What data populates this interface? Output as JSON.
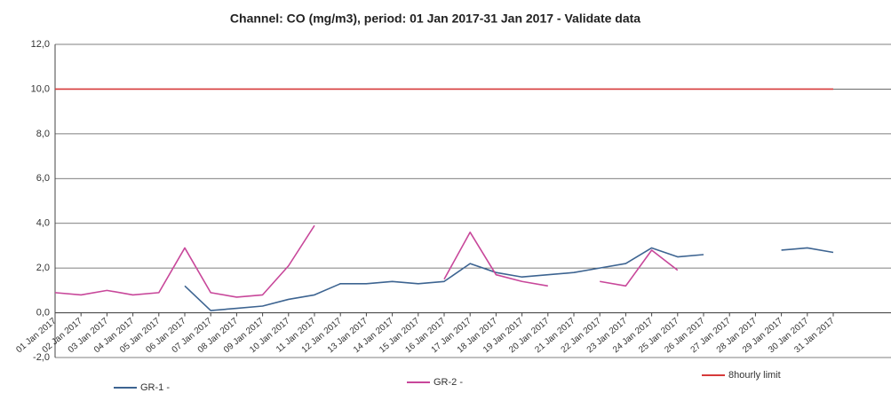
{
  "chart_data": {
    "type": "line",
    "title": "Channel: CO (mg/m3), period: 01 Jan 2017-31 Jan 2017 - Validate data",
    "categories": [
      "01 Jan 2017",
      "02 Jan 2017",
      "03 Jan 2017",
      "04 Jan 2017",
      "05 Jan 2017",
      "06 Jan 2017",
      "07 Jan 2017",
      "08 Jan 2017",
      "09 Jan 2017",
      "10 Jan 2017",
      "11 Jan 2017",
      "12 Jan 2017",
      "13 Jan 2017",
      "14 Jan 2017",
      "15 Jan 2017",
      "16 Jan 2017",
      "17 Jan 2017",
      "18 Jan 2017",
      "19 Jan 2017",
      "20 Jan 2017",
      "21 Jan 2017",
      "22 Jan 2017",
      "23 Jan 2017",
      "24 Jan 2017",
      "25 Jan 2017",
      "26 Jan 2017",
      "27 Jan 2017",
      "28 Jan 2017",
      "29 Jan 2017",
      "30 Jan 2017",
      "31 Jan 2017"
    ],
    "series": [
      {
        "name": "GR-1 -",
        "color": "#3d6491",
        "values": [
          null,
          null,
          null,
          null,
          null,
          1.2,
          0.1,
          0.2,
          0.3,
          0.6,
          0.8,
          1.3,
          1.3,
          1.4,
          1.3,
          1.4,
          2.2,
          1.8,
          1.6,
          1.7,
          1.8,
          2.0,
          2.2,
          2.9,
          2.5,
          2.6,
          null,
          null,
          2.8,
          2.9,
          2.7
        ]
      },
      {
        "name": "GR-2 -",
        "color": "#c8479a",
        "values": [
          0.9,
          0.8,
          1.0,
          0.8,
          0.9,
          2.9,
          0.9,
          0.7,
          0.8,
          2.1,
          3.9,
          null,
          null,
          null,
          null,
          1.5,
          3.6,
          1.7,
          1.4,
          1.2,
          null,
          1.4,
          1.2,
          2.8,
          1.9,
          null,
          null,
          null,
          null,
          null,
          null
        ]
      },
      {
        "name": "8hourly limit",
        "color": "#d63a3a",
        "values": [
          10,
          10,
          10,
          10,
          10,
          10,
          10,
          10,
          10,
          10,
          10,
          10,
          10,
          10,
          10,
          10,
          10,
          10,
          10,
          10,
          10,
          10,
          10,
          10,
          10,
          10,
          10,
          10,
          10,
          10,
          10
        ]
      }
    ],
    "ylim": [
      -2,
      12
    ],
    "yticks": [
      {
        "value": -2,
        "label": "-2,0"
      },
      {
        "value": 0,
        "label": "0,0"
      },
      {
        "value": 2,
        "label": "2,0"
      },
      {
        "value": 4,
        "label": "4,0"
      },
      {
        "value": 6,
        "label": "6,0"
      },
      {
        "value": 8,
        "label": "8,0"
      },
      {
        "value": 10,
        "label": "10,0"
      },
      {
        "value": 12,
        "label": "12,0"
      }
    ],
    "grid": true,
    "legend": "bottom"
  }
}
